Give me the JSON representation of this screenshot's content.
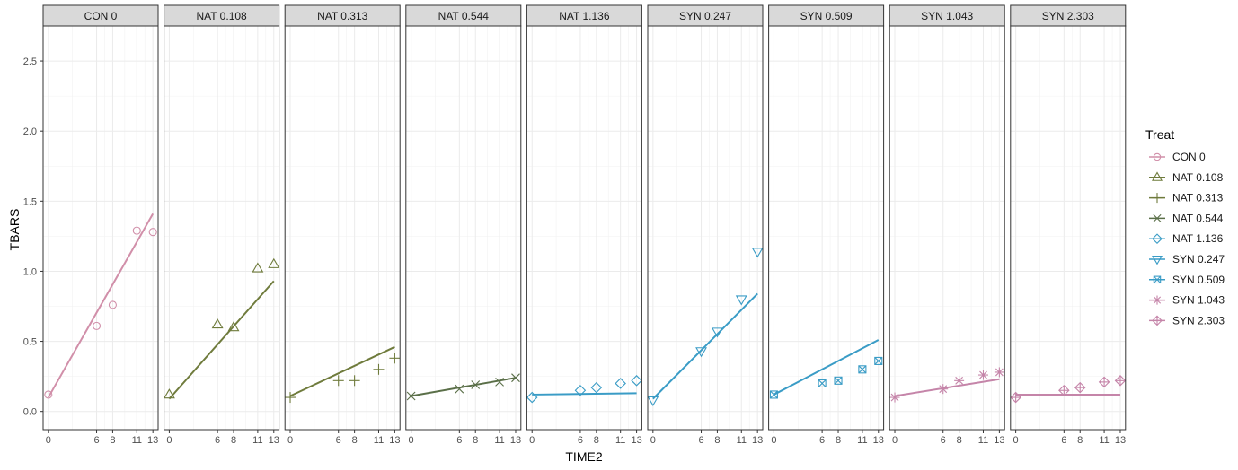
{
  "chart_data": {
    "type": "scatter",
    "facet": true,
    "xlabel": "TIME2",
    "ylabel": "TBARS",
    "x_ticks": [
      0,
      6,
      8,
      11,
      13
    ],
    "y_ticks": [
      0.0,
      0.5,
      1.0,
      1.5,
      2.0,
      2.5
    ],
    "y_tick_labels": [
      "0.0",
      "0.5",
      "1.0",
      "1.5",
      "2.0",
      "2.5"
    ],
    "xlim": [
      -0.65,
      13.65
    ],
    "ylim": [
      -0.13,
      2.75
    ],
    "grid": true,
    "legend": {
      "title": "Treat",
      "position": "right"
    },
    "series": [
      {
        "name": "CON 0",
        "color": "#d18fa9",
        "shape": "circle",
        "x": [
          0,
          6,
          8,
          11,
          13
        ],
        "y": [
          0.12,
          0.61,
          0.76,
          1.29,
          1.28
        ],
        "fit": [
          [
            0,
            0.1
          ],
          [
            13,
            1.41
          ]
        ]
      },
      {
        "name": "NAT 0.108",
        "color": "#6f7b3c",
        "shape": "triangle-up",
        "x": [
          0,
          6,
          8,
          11,
          13
        ],
        "y": [
          0.12,
          0.62,
          0.6,
          1.02,
          1.05
        ],
        "fit": [
          [
            0,
            0.09
          ],
          [
            13,
            0.93
          ]
        ]
      },
      {
        "name": "NAT 0.313",
        "color": "#6f7b3c",
        "shape": "plus",
        "x": [
          0,
          6,
          8,
          11,
          13
        ],
        "y": [
          0.1,
          0.22,
          0.22,
          0.3,
          0.38
        ],
        "fit": [
          [
            0,
            0.11
          ],
          [
            13,
            0.46
          ]
        ]
      },
      {
        "name": "NAT 0.544",
        "color": "#5a6f48",
        "shape": "cross",
        "x": [
          0,
          6,
          8,
          11,
          13
        ],
        "y": [
          0.11,
          0.16,
          0.19,
          0.21,
          0.24
        ],
        "fit": [
          [
            0,
            0.11
          ],
          [
            13,
            0.24
          ]
        ]
      },
      {
        "name": "NAT 1.136",
        "color": "#3a9cc6",
        "shape": "diamond",
        "x": [
          0,
          6,
          8,
          11,
          13
        ],
        "y": [
          0.1,
          0.15,
          0.17,
          0.2,
          0.22
        ],
        "fit": [
          [
            0,
            0.12
          ],
          [
            13,
            0.13
          ]
        ]
      },
      {
        "name": "SYN 0.247",
        "color": "#3a9cc6",
        "shape": "triangle-down",
        "x": [
          0,
          6,
          8,
          11,
          13
        ],
        "y": [
          0.08,
          0.43,
          0.57,
          0.8,
          1.14
        ],
        "fit": [
          [
            0,
            0.09
          ],
          [
            13,
            0.84
          ]
        ]
      },
      {
        "name": "SYN 0.509",
        "color": "#3a9cc6",
        "shape": "square-cross",
        "x": [
          0,
          6,
          8,
          11,
          13
        ],
        "y": [
          0.12,
          0.2,
          0.22,
          0.3,
          0.36
        ],
        "fit": [
          [
            0,
            0.12
          ],
          [
            13,
            0.51
          ]
        ]
      },
      {
        "name": "SYN 1.043",
        "color": "#c585a9",
        "shape": "asterisk",
        "x": [
          0,
          6,
          8,
          11,
          13
        ],
        "y": [
          0.1,
          0.16,
          0.22,
          0.26,
          0.28
        ],
        "fit": [
          [
            0,
            0.11
          ],
          [
            13,
            0.23
          ]
        ]
      },
      {
        "name": "SYN 2.303",
        "color": "#c585a9",
        "shape": "diamond-plus",
        "x": [
          0,
          6,
          8,
          11,
          13
        ],
        "y": [
          0.1,
          0.15,
          0.17,
          0.21,
          0.22
        ],
        "fit": [
          [
            0,
            0.12
          ],
          [
            13,
            0.12
          ]
        ]
      }
    ]
  }
}
